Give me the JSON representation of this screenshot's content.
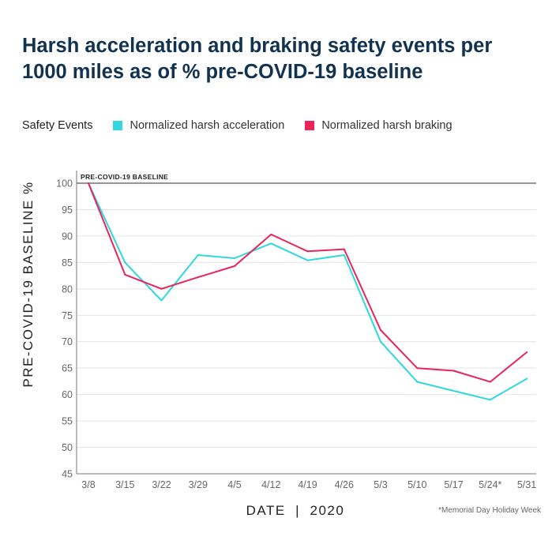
{
  "chart_data": {
    "type": "line",
    "title": "Harsh acceleration and braking safety events per 1000 miles as of % pre-COVID-19 baseline",
    "legend_title": "Safety Events",
    "legend_position": "top-left",
    "categories": [
      "3/8",
      "3/15",
      "3/22",
      "3/29",
      "4/5",
      "4/12",
      "4/19",
      "4/26",
      "5/3",
      "5/10",
      "5/17",
      "5/24*",
      "5/31"
    ],
    "series": [
      {
        "name": "Normalized harsh acceleration",
        "color": "#2ed8de",
        "values": [
          100,
          85,
          77.8,
          86.4,
          85.8,
          88.6,
          85.4,
          86.4,
          70,
          62.4,
          60.7,
          59,
          63
        ]
      },
      {
        "name": "Normalized harsh braking",
        "color": "#e8245a",
        "values": [
          100,
          82.7,
          80,
          82.2,
          84.3,
          90.3,
          87.1,
          87.5,
          72.2,
          65,
          64.5,
          62.4,
          68
        ]
      }
    ],
    "xlabel": "DATE  |  2020",
    "ylabel": "PRE-COVID-19 BASELINE %",
    "ylim": [
      45,
      100
    ],
    "yticks": [
      100,
      95,
      90,
      85,
      80,
      75,
      70,
      65,
      60,
      55,
      50,
      45
    ],
    "grid": true,
    "baseline": {
      "value": 100,
      "label": "PRE-COVID-19 BASELINE"
    },
    "footnote": "*Memorial Day Holiday Week"
  }
}
